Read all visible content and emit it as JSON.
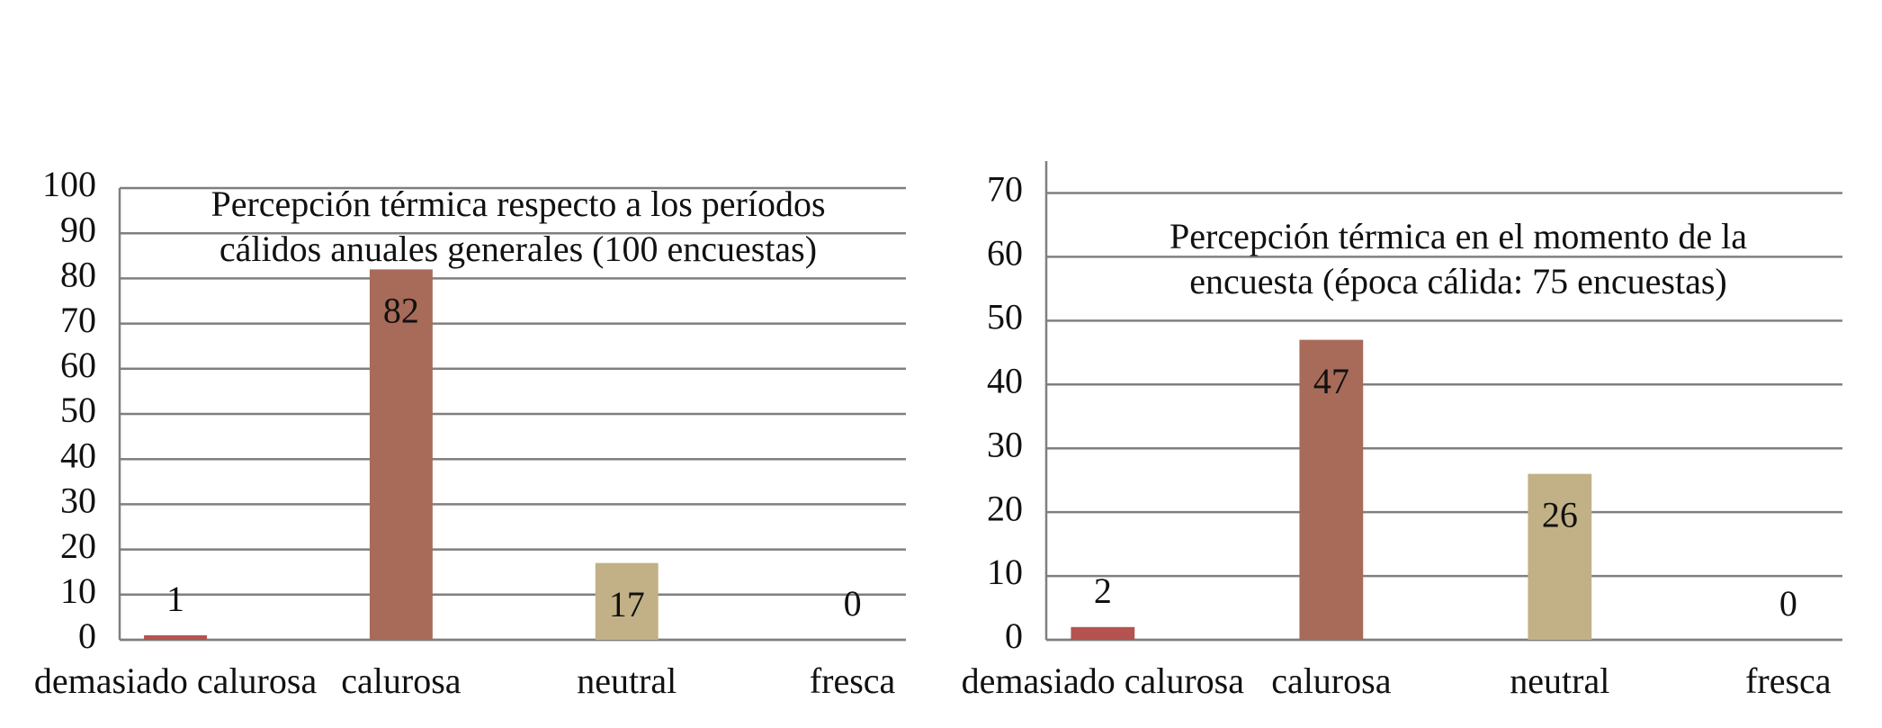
{
  "chart_data": [
    {
      "type": "bar",
      "title": [
        "Percepción térmica respecto a los períodos",
        "cálidos anuales generales (100 encuestas)"
      ],
      "categories": [
        "demasiado calurosa",
        "calurosa",
        "neutral",
        "fresca"
      ],
      "values": [
        1,
        82,
        17,
        0
      ],
      "colors": [
        "#b4534f",
        "#a86b59",
        "#c2b186",
        "#a86b59"
      ],
      "ylim": [
        0,
        100
      ],
      "yticks": [
        0,
        10,
        20,
        30,
        40,
        50,
        60,
        70,
        80,
        90,
        100
      ],
      "grid": true
    },
    {
      "type": "bar",
      "title": [
        "Percepción térmica en el momento de la",
        "encuesta (época cálida: 75 encuestas)"
      ],
      "categories": [
        "demasiado calurosa",
        "calurosa",
        "neutral",
        "fresca"
      ],
      "values": [
        2,
        47,
        26,
        0
      ],
      "colors": [
        "#b4534f",
        "#a86b59",
        "#c2b186",
        "#a86b59"
      ],
      "ylim": [
        0,
        75
      ],
      "yticks": [
        0,
        10,
        20,
        30,
        40,
        50,
        60,
        70
      ],
      "grid": true
    }
  ]
}
